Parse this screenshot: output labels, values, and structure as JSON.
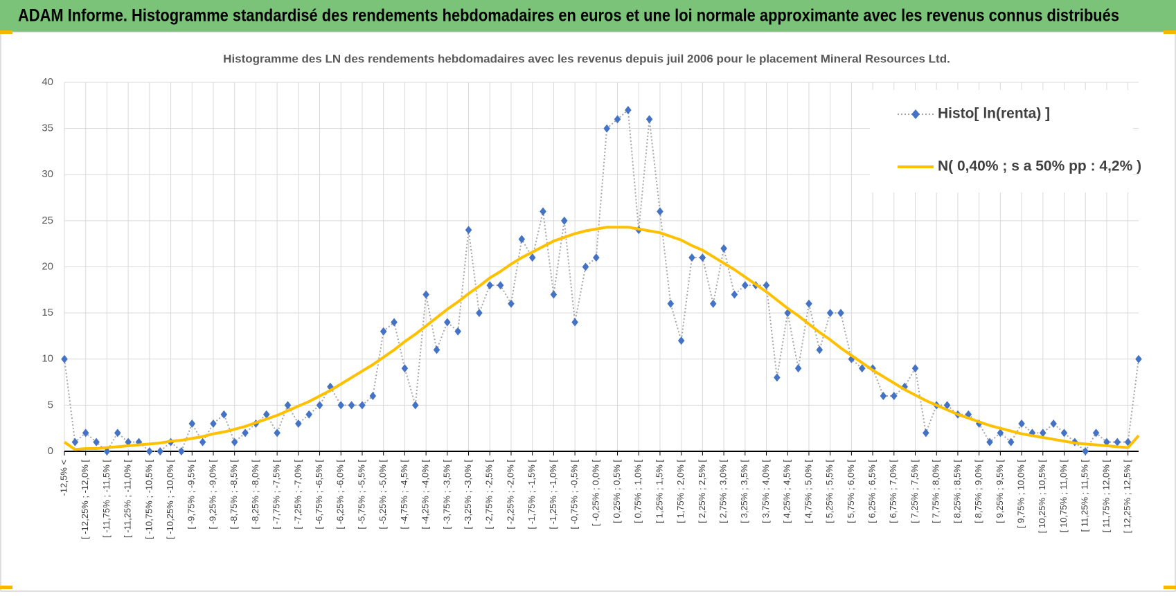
{
  "page_title": "ADAM Informe. Histogramme standardisé des rendements hebdomadaires en euros et une loi normale approximante avec les revenus connus distribués",
  "chart_data": {
    "type": "line",
    "title": "Histogramme  des LN des rendements hebdomadaires avec les revenus depuis juil 2006 pour le placement Mineral Resources Ltd.",
    "categories": [
      "-12,5% <",
      null,
      "[ -12,25% ; -12,0% [",
      null,
      "[ -11,75% ; -11,5% [",
      null,
      "[ -11,25% ; -11,0% [",
      null,
      "[ -10,75% ; -10,5% [",
      null,
      "[ -10,25% ; -10,0% [",
      null,
      "[ -9,75% ; -9,5% [",
      null,
      "[ -9,25% ; -9,0% [",
      null,
      "[ -8,75% ; -8,5% [",
      null,
      "[ -8,25% ; -8,0% [",
      null,
      "[ -7,75% ; -7,5% [",
      null,
      "[ -7,25% ; -7,0% [",
      null,
      "[ -6,75% ; -6,5% [",
      null,
      "[ -6,25% ; -6,0% [",
      null,
      "[ -5,75% ; -5,5% [",
      null,
      "[ -5,25% ; -5,0% [",
      null,
      "[ -4,75% ; -4,5% [",
      null,
      "[ -4,25% ; -4,0% [",
      null,
      "[ -3,75% ; -3,5% [",
      null,
      "[ -3,25% ; -3,0% [",
      null,
      "[ -2,75% ; -2,5% [",
      null,
      "[ -2,25% ; -2,0% [",
      null,
      "[ -1,75% ; -1,5% [",
      null,
      "[ -1,25% ; -1,0% [",
      null,
      "[ -0,75% ; -0,5% [",
      null,
      "[ -0,25% ; 0,0% [",
      null,
      "[ 0,25% ; 0,5% [",
      null,
      "[ 0,75% ; 1,0% [",
      null,
      "[ 1,25% ; 1,5% [",
      null,
      "[ 1,75% ; 2,0% [",
      null,
      "[ 2,25% ; 2,5% [",
      null,
      "[ 2,75% ; 3,0% [",
      null,
      "[ 3,25% ; 3,5% [",
      null,
      "[ 3,75% ; 4,0% [",
      null,
      "[ 4,25% ; 4,5% [",
      null,
      "[ 4,75% ; 5,0% [",
      null,
      "[ 5,25% ; 5,5% [",
      null,
      "[ 5,75% ; 6,0% [",
      null,
      "[ 6,25% ; 6,5% [",
      null,
      "[ 6,75% ; 7,0% [",
      null,
      "[ 7,25% ; 7,5% [",
      null,
      "[ 7,75% ; 8,0% [",
      null,
      "[ 8,25% ; 8,5% [",
      null,
      "[ 8,75% ; 9,0% [",
      null,
      "[ 9,25% ; 9,5% [",
      null,
      "[ 9,75% ; 10,0% [",
      null,
      "[ 10,25% ; 10,5% [",
      null,
      "[ 10,75% ; 11,0% [",
      null,
      "[ 11,25% ; 11,5% [",
      null,
      "[ 11,75% ; 12,0% [",
      null,
      "[ 12,25% ; 12,5% [",
      null
    ],
    "series": [
      {
        "name": "Histo[ ln(renta) ]",
        "color": "#4472c4",
        "marker": "diamond",
        "line_style": "dotted",
        "line_color": "#a6a6a6",
        "values": [
          10,
          1,
          2,
          1,
          0,
          2,
          1,
          1,
          0,
          0,
          1,
          0,
          3,
          1,
          3,
          4,
          1,
          2,
          3,
          4,
          2,
          5,
          3,
          4,
          5,
          7,
          5,
          5,
          5,
          6,
          13,
          14,
          9,
          5,
          17,
          11,
          14,
          13,
          24,
          15,
          18,
          18,
          16,
          23,
          21,
          26,
          17,
          25,
          14,
          20,
          21,
          35,
          36,
          37,
          24,
          36,
          26,
          16,
          12,
          21,
          21,
          16,
          22,
          17,
          18,
          18,
          18,
          8,
          15,
          9,
          16,
          11,
          15,
          15,
          10,
          9,
          9,
          6,
          6,
          7,
          9,
          2,
          5,
          5,
          4,
          4,
          3,
          1,
          2,
          1,
          3,
          2,
          2,
          3,
          2,
          1,
          0,
          2,
          1,
          1,
          1,
          10
        ]
      },
      {
        "name": "N( 0,40% ; s a 50% pp : 4,2% )",
        "color": "#ffc000",
        "marker": "none",
        "line_style": "solid",
        "line_width": 4,
        "values": [
          1.0,
          0.2,
          0.3,
          0.3,
          0.4,
          0.5,
          0.6,
          0.7,
          0.8,
          0.9,
          1.1,
          1.2,
          1.4,
          1.6,
          1.9,
          2.1,
          2.4,
          2.7,
          3.1,
          3.5,
          3.9,
          4.4,
          4.9,
          5.4,
          6.0,
          6.6,
          7.3,
          8.0,
          8.7,
          9.4,
          10.2,
          11.0,
          11.9,
          12.7,
          13.6,
          14.5,
          15.4,
          16.2,
          17.1,
          17.9,
          18.8,
          19.5,
          20.3,
          21.0,
          21.6,
          22.2,
          22.8,
          23.2,
          23.6,
          23.9,
          24.1,
          24.3,
          24.3,
          24.3,
          24.1,
          23.9,
          23.7,
          23.3,
          22.9,
          22.3,
          21.8,
          21.1,
          20.4,
          19.7,
          18.9,
          18.1,
          17.3,
          16.4,
          15.5,
          14.7,
          13.8,
          12.9,
          12.1,
          11.2,
          10.4,
          9.6,
          8.8,
          8.1,
          7.4,
          6.7,
          6.1,
          5.5,
          5.0,
          4.5,
          4.0,
          3.6,
          3.2,
          2.8,
          2.5,
          2.2,
          1.9,
          1.7,
          1.5,
          1.3,
          1.1,
          0.9,
          0.8,
          0.7,
          0.6,
          0.5,
          0.4,
          1.7
        ]
      }
    ],
    "ylim": [
      0,
      40
    ],
    "yticks": [
      0,
      5,
      10,
      15,
      20,
      25,
      30,
      35,
      40
    ],
    "grid": true,
    "legend": "upper right"
  }
}
